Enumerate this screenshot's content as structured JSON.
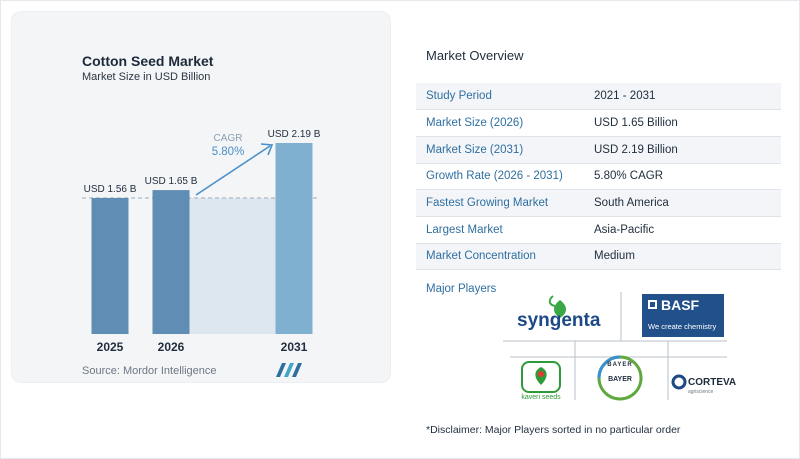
{
  "chart_data": {
    "type": "bar",
    "title": "Cotton Seed Market",
    "subtitle": "Market Size in USD Billion",
    "categories": [
      "2025",
      "2026",
      "2031"
    ],
    "values": [
      1.56,
      1.65,
      2.19
    ],
    "data_labels": [
      "USD 1.56 B",
      "USD 1.65 B",
      "USD 2.19 B"
    ],
    "cagr_label": "CAGR",
    "cagr_value": "5.80%",
    "ylim": [
      0,
      2.19
    ],
    "grid": false,
    "legend": "none",
    "bar_color": "#5f8db3",
    "bar_color_light": "#7fb0cf",
    "arrow_color": "#4a90c8"
  },
  "source": "Source: Mordor Intelligence",
  "overview": {
    "title": "Market Overview",
    "rows": [
      {
        "label": "Study Period",
        "value": "2021 - 2031"
      },
      {
        "label": "Market Size (2026)",
        "value": "USD 1.65 Billion"
      },
      {
        "label": "Market Size (2031)",
        "value": "USD 2.19 Billion"
      },
      {
        "label": "Growth Rate (2026 - 2031)",
        "value": "5.80% CAGR"
      },
      {
        "label": "Fastest Growing Market",
        "value": "South America"
      },
      {
        "label": "Largest Market",
        "value": "Asia-Pacific"
      },
      {
        "label": "Market Concentration",
        "value": "Medium"
      }
    ]
  },
  "players": {
    "title": "Major Players",
    "syngenta": "syngenta",
    "basf": "BASF",
    "basf_tagline": "We create chemistry",
    "kaveri": "kaveri seeds",
    "bayer_top": "BAYER",
    "bayer_side": "BAYER",
    "corteva": "CORTEVA",
    "corteva_sub": "agriscience"
  },
  "disclaimer": "*Disclaimer: Major Players sorted in no particular order"
}
